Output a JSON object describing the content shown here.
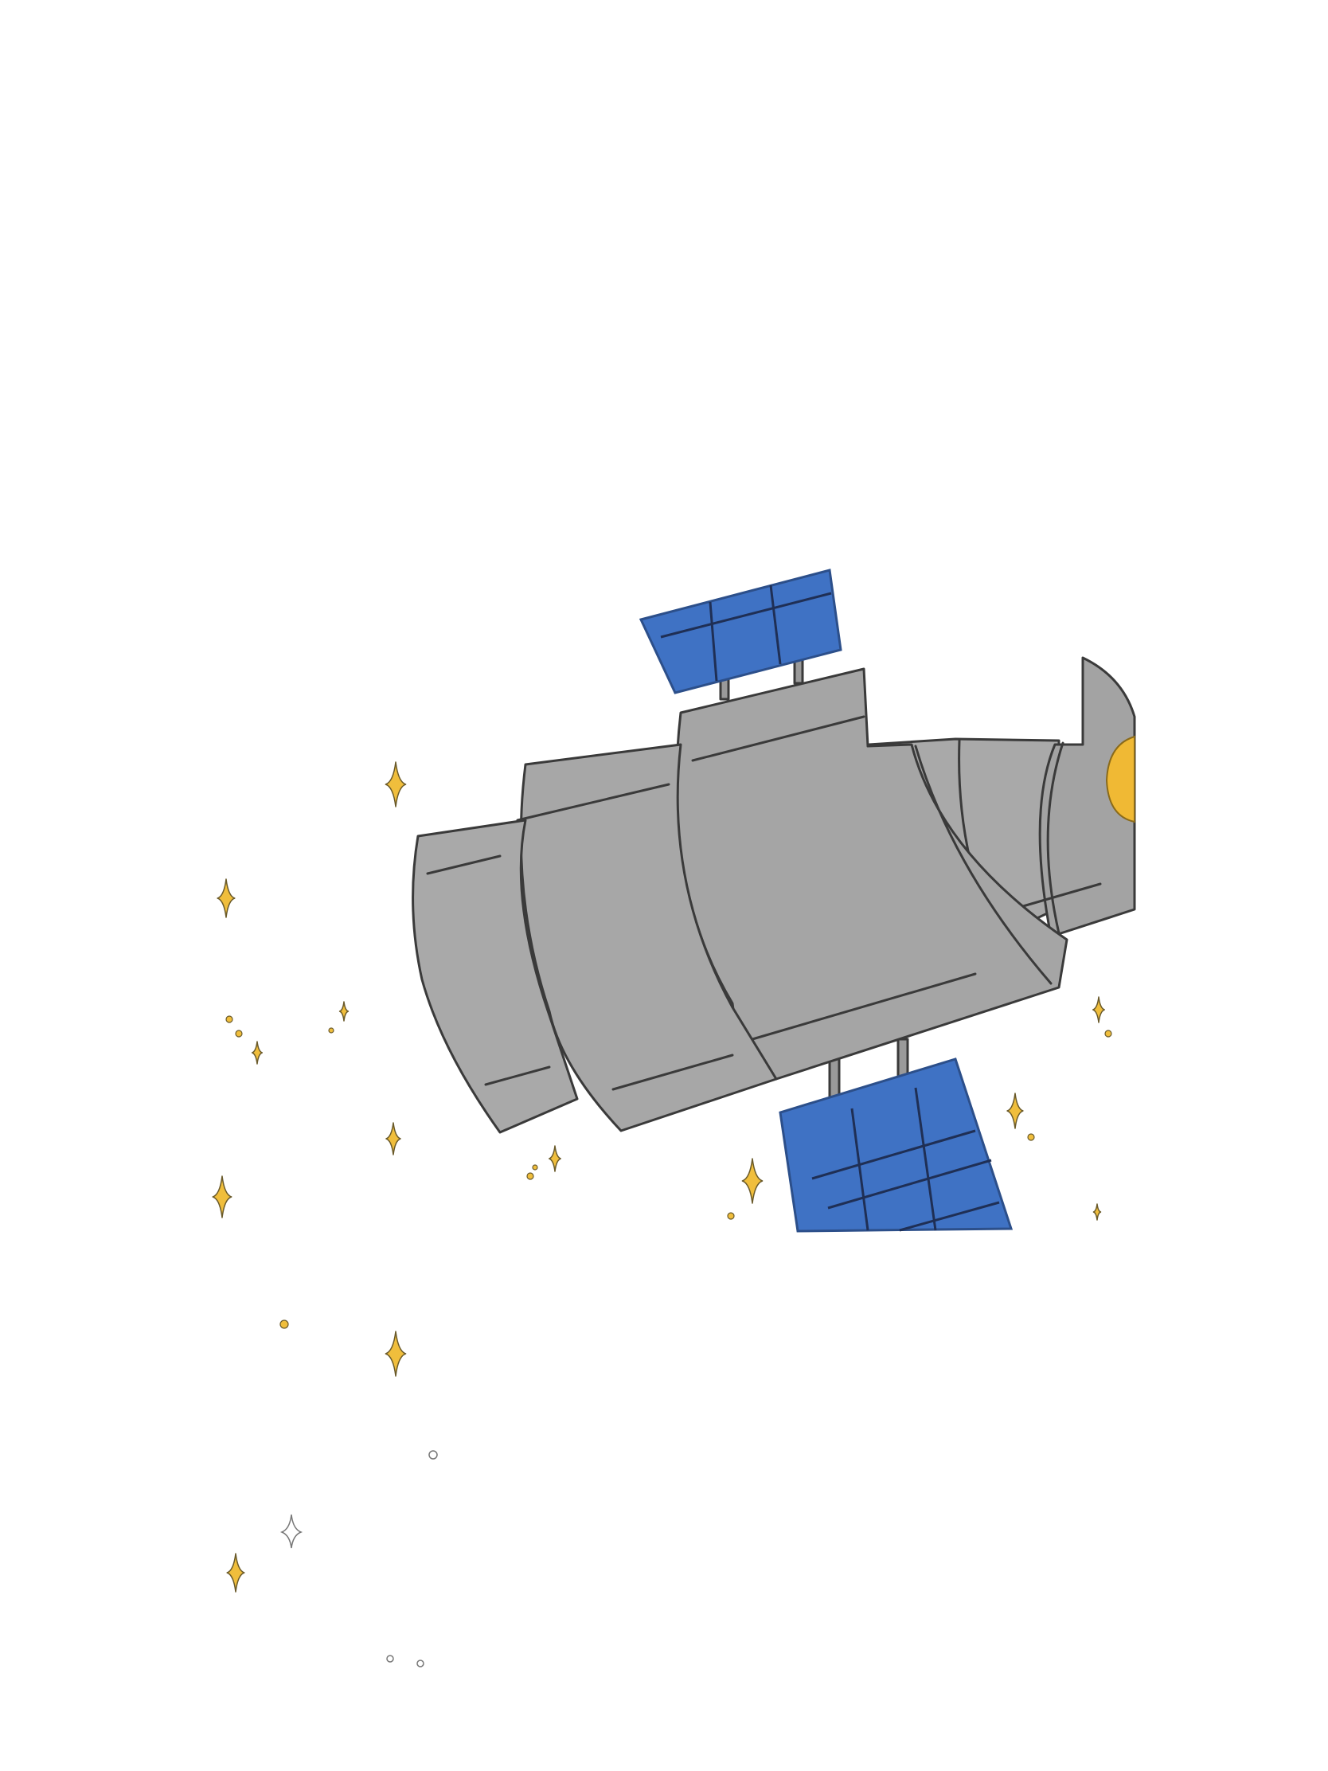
{
  "illustration": {
    "subject": "",
    "colors": {
      "background": "#ffffff",
      "body": "#a9a9a9",
      "body_shade": "#9c9c9c",
      "outline": "#3a3a3a",
      "solar_panel": "#3f72c4",
      "solar_grid": "#1f2f55",
      "sparkle": "#f0be3c",
      "lens": "#f0b934"
    },
    "icons": [
      "satellite-icon",
      "solar-panel-icon",
      "sparkle-icon"
    ]
  }
}
